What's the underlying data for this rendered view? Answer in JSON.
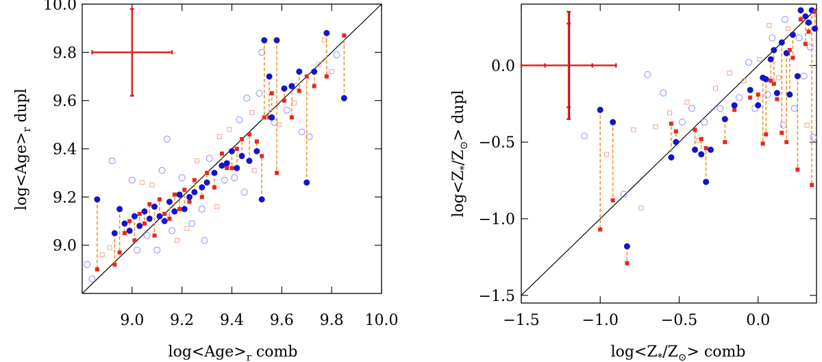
{
  "chart_data": [
    {
      "type": "scatter",
      "xlabel": "log<Age>",
      "xlabel_sub": "r",
      "xlabel_suffix": " comb",
      "ylabel": "log<Age>",
      "ylabel_sub": "r",
      "ylabel_suffix": " dupl",
      "xlim": [
        8.8,
        10.0
      ],
      "ylim": [
        8.8,
        10.0
      ],
      "xticks": [
        9.0,
        9.2,
        9.4,
        9.6,
        9.8,
        10.0
      ],
      "xtick_labels": [
        "9.0",
        "9.2",
        "9.4",
        "9.6",
        "9.8",
        "10.0"
      ],
      "yticks": [
        9.0,
        9.2,
        9.4,
        9.6,
        9.8,
        10.0
      ],
      "ytick_labels": [
        "9.0",
        "9.2",
        "9.4",
        "9.6",
        "9.8",
        "10.0"
      ],
      "one_to_one_line": true,
      "colors": {
        "filled_circle": "#1414c8",
        "open_circle": "#8c8cff",
        "filled_square": "#e8281e",
        "open_square": "#f5a08c",
        "connector": "#f28c1e",
        "error_bar": "#e0201f"
      },
      "error_cross": {
        "center": [
          9.0,
          9.8
        ],
        "xerr": 0.16,
        "yerr": 0.18
      },
      "pairs": [
        [
          8.86,
          9.19,
          8.9
        ],
        [
          8.93,
          9.05,
          8.92
        ],
        [
          8.95,
          9.15,
          8.97
        ],
        [
          8.97,
          9.09,
          9.05
        ],
        [
          8.99,
          9.06,
          9.1
        ],
        [
          9.01,
          9.12,
          9.02
        ],
        [
          9.03,
          9.08,
          9.13
        ],
        [
          9.05,
          9.14,
          9.09
        ],
        [
          9.07,
          9.11,
          9.17
        ],
        [
          9.09,
          9.16,
          9.04
        ],
        [
          9.11,
          9.12,
          9.19
        ],
        [
          9.13,
          9.1,
          9.13
        ],
        [
          9.15,
          9.18,
          9.11
        ],
        [
          9.17,
          9.14,
          9.21
        ],
        [
          9.19,
          9.21,
          9.15
        ],
        [
          9.21,
          9.15,
          9.23
        ],
        [
          9.23,
          9.2,
          9.18
        ],
        [
          9.25,
          9.22,
          9.27
        ],
        [
          9.28,
          9.24,
          9.2
        ],
        [
          9.3,
          9.26,
          9.3
        ],
        [
          9.33,
          9.3,
          9.24
        ],
        [
          9.36,
          9.33,
          9.38
        ],
        [
          9.38,
          9.34,
          9.32
        ],
        [
          9.4,
          9.39,
          9.32
        ],
        [
          9.42,
          9.32,
          9.4
        ],
        [
          9.44,
          9.37,
          9.44
        ],
        [
          9.47,
          9.35,
          9.46
        ],
        [
          9.5,
          9.39,
          9.43
        ],
        [
          9.52,
          9.19,
          9.37
        ],
        [
          9.53,
          9.85,
          9.53
        ],
        [
          9.55,
          9.7,
          9.53
        ],
        [
          9.58,
          9.85,
          9.3
        ],
        [
          9.61,
          9.65,
          9.6
        ],
        [
          9.64,
          9.66,
          9.53
        ],
        [
          9.67,
          9.72,
          9.64
        ],
        [
          9.7,
          9.26,
          9.7
        ],
        [
          9.73,
          9.72,
          9.66
        ],
        [
          9.78,
          9.88,
          9.7
        ],
        [
          9.85,
          9.61,
          9.87
        ],
        [
          9.56,
          9.53,
          9.63
        ]
      ],
      "extra_points": [
        [
          8.82,
          8.92,
          "oc"
        ],
        [
          8.84,
          8.86,
          "oc"
        ],
        [
          8.88,
          8.96,
          "os"
        ],
        [
          8.91,
          8.99,
          "os"
        ],
        [
          8.92,
          9.35,
          "oc"
        ],
        [
          9.0,
          9.27,
          "oc"
        ],
        [
          9.02,
          8.98,
          "oc"
        ],
        [
          9.04,
          9.26,
          "os"
        ],
        [
          9.06,
          9.04,
          "oc"
        ],
        [
          9.08,
          9.25,
          "os"
        ],
        [
          9.1,
          8.98,
          "oc"
        ],
        [
          9.12,
          9.31,
          "oc"
        ],
        [
          9.14,
          9.44,
          "oc"
        ],
        [
          9.16,
          9.06,
          "oc"
        ],
        [
          9.18,
          9.02,
          "os"
        ],
        [
          9.2,
          9.28,
          "oc"
        ],
        [
          9.22,
          9.07,
          "os"
        ],
        [
          9.24,
          9.09,
          "oc"
        ],
        [
          9.26,
          9.35,
          "os"
        ],
        [
          9.28,
          9.15,
          "oc"
        ],
        [
          9.29,
          9.02,
          "oc"
        ],
        [
          9.31,
          9.36,
          "oc"
        ],
        [
          9.34,
          9.16,
          "os"
        ],
        [
          9.35,
          9.45,
          "os"
        ],
        [
          9.37,
          9.27,
          "oc"
        ],
        [
          9.39,
          9.48,
          "os"
        ],
        [
          9.41,
          9.28,
          "oc"
        ],
        [
          9.43,
          9.52,
          "oc"
        ],
        [
          9.45,
          9.22,
          "oc"
        ],
        [
          9.46,
          9.61,
          "oc"
        ],
        [
          9.48,
          9.55,
          "os"
        ],
        [
          9.49,
          9.31,
          "os"
        ],
        [
          9.51,
          9.63,
          "oc"
        ],
        [
          9.52,
          9.8,
          "oc"
        ],
        [
          9.57,
          9.51,
          "oc"
        ],
        [
          9.59,
          9.5,
          "os"
        ],
        [
          9.62,
          9.56,
          "oc"
        ],
        [
          9.65,
          9.59,
          "os"
        ],
        [
          9.66,
          9.66,
          "oc"
        ],
        [
          9.68,
          9.47,
          "oc"
        ],
        [
          9.71,
          9.45,
          "oc"
        ],
        [
          9.75,
          9.75,
          "os"
        ],
        [
          9.77,
          9.85,
          "os"
        ],
        [
          9.8,
          9.72,
          "os"
        ],
        [
          9.82,
          9.79,
          "oc"
        ]
      ]
    },
    {
      "type": "scatter",
      "xlabel": "log<Z",
      "xlabel_sub": "*",
      "xlabel_mid": "/Z",
      "xlabel_sub2": "⊙",
      "xlabel_suffix": "> comb",
      "ylabel": "log<Z",
      "ylabel_sub": "*",
      "ylabel_mid": "/Z",
      "ylabel_sub2": "⊙",
      "ylabel_suffix": "> dupl",
      "xlim": [
        -1.5,
        0.37
      ],
      "ylim": [
        -1.55,
        0.4
      ],
      "xticks": [
        -1.5,
        -1.0,
        -0.5,
        0.0
      ],
      "xtick_labels": [
        "−1.5",
        "−1.0",
        "−0.5",
        "0.0"
      ],
      "yticks": [
        -1.5,
        -1.0,
        -0.5,
        0.0
      ],
      "ytick_labels": [
        "−1.5",
        "−1.0",
        "−0.5",
        "0.0"
      ],
      "one_to_one_line": true,
      "colors": {
        "filled_circle": "#1414c8",
        "open_circle": "#8c8cff",
        "filled_square": "#e8281e",
        "open_square": "#f5a08c",
        "connector": "#f28c1e",
        "error_bar": "#e0201f"
      },
      "error_cross": {
        "center": [
          -1.2,
          0.0
        ],
        "xerr": 0.3,
        "yerr": 0.35
      },
      "pairs": [
        [
          -1.0,
          -0.29,
          -1.07
        ],
        [
          -0.92,
          -0.37,
          -0.88
        ],
        [
          -0.83,
          -1.18,
          -1.29
        ],
        [
          -0.55,
          -0.6,
          -0.38
        ],
        [
          -0.52,
          -0.5,
          -0.43
        ],
        [
          -0.4,
          -0.55,
          -0.42
        ],
        [
          -0.36,
          -0.58,
          -0.48
        ],
        [
          -0.33,
          -0.76,
          -0.54
        ],
        [
          -0.3,
          -0.55,
          -0.55
        ],
        [
          -0.21,
          -0.35,
          -0.5
        ],
        [
          -0.15,
          -0.26,
          -0.29
        ],
        [
          -0.05,
          -0.16,
          -0.21
        ],
        [
          0.0,
          -0.26,
          -0.19
        ],
        [
          0.03,
          -0.08,
          -0.51
        ],
        [
          0.05,
          -0.09,
          -0.45
        ],
        [
          0.08,
          0.04,
          -0.1
        ],
        [
          0.1,
          0.1,
          -0.12
        ],
        [
          0.12,
          -0.18,
          -0.22
        ],
        [
          0.15,
          0.15,
          -0.44
        ],
        [
          0.18,
          0.08,
          -0.5
        ],
        [
          0.2,
          -0.19,
          0.1
        ],
        [
          0.22,
          0.2,
          0.05
        ],
        [
          0.25,
          -0.07,
          -0.68
        ],
        [
          0.27,
          0.36,
          0.3
        ],
        [
          0.3,
          0.32,
          0.14
        ],
        [
          0.32,
          0.28,
          0.22
        ],
        [
          0.34,
          0.36,
          -0.78
        ],
        [
          0.36,
          0.24,
          0.35
        ]
      ],
      "extra_points": [
        [
          -1.1,
          -0.46,
          "oc"
        ],
        [
          -0.96,
          -0.58,
          "os"
        ],
        [
          -0.85,
          -0.84,
          "oc"
        ],
        [
          -0.79,
          -0.42,
          "os"
        ],
        [
          -0.74,
          -0.93,
          "os"
        ],
        [
          -0.7,
          -0.06,
          "oc"
        ],
        [
          -0.65,
          -0.4,
          "os"
        ],
        [
          -0.6,
          -0.18,
          "oc"
        ],
        [
          -0.56,
          -0.31,
          "os"
        ],
        [
          -0.48,
          -0.37,
          "oc"
        ],
        [
          -0.45,
          -0.24,
          "os"
        ],
        [
          -0.42,
          -0.28,
          "oc"
        ],
        [
          -0.38,
          -0.49,
          "os"
        ],
        [
          -0.34,
          -0.37,
          "oc"
        ],
        [
          -0.27,
          -0.15,
          "os"
        ],
        [
          -0.24,
          -0.28,
          "oc"
        ],
        [
          -0.18,
          -0.05,
          "os"
        ],
        [
          -0.12,
          -0.21,
          "oc"
        ],
        [
          -0.09,
          -0.1,
          "os"
        ],
        [
          -0.02,
          -0.28,
          "oc"
        ],
        [
          0.01,
          0.04,
          "os"
        ],
        [
          0.06,
          -0.19,
          "oc"
        ],
        [
          0.09,
          0.18,
          "oc"
        ],
        [
          0.13,
          -0.08,
          "os"
        ],
        [
          0.16,
          -0.39,
          "oc"
        ],
        [
          0.19,
          0.24,
          "os"
        ],
        [
          0.23,
          -0.28,
          "oc"
        ],
        [
          0.26,
          0.18,
          "oc"
        ],
        [
          0.29,
          -0.07,
          "oc"
        ],
        [
          0.31,
          -0.39,
          "os"
        ],
        [
          0.33,
          0.12,
          "oc"
        ],
        [
          0.35,
          -0.47,
          "oc"
        ],
        [
          0.07,
          0.26,
          "os"
        ],
        [
          -0.06,
          0.02,
          "oc"
        ],
        [
          0.17,
          0.3,
          "oc"
        ]
      ]
    }
  ]
}
